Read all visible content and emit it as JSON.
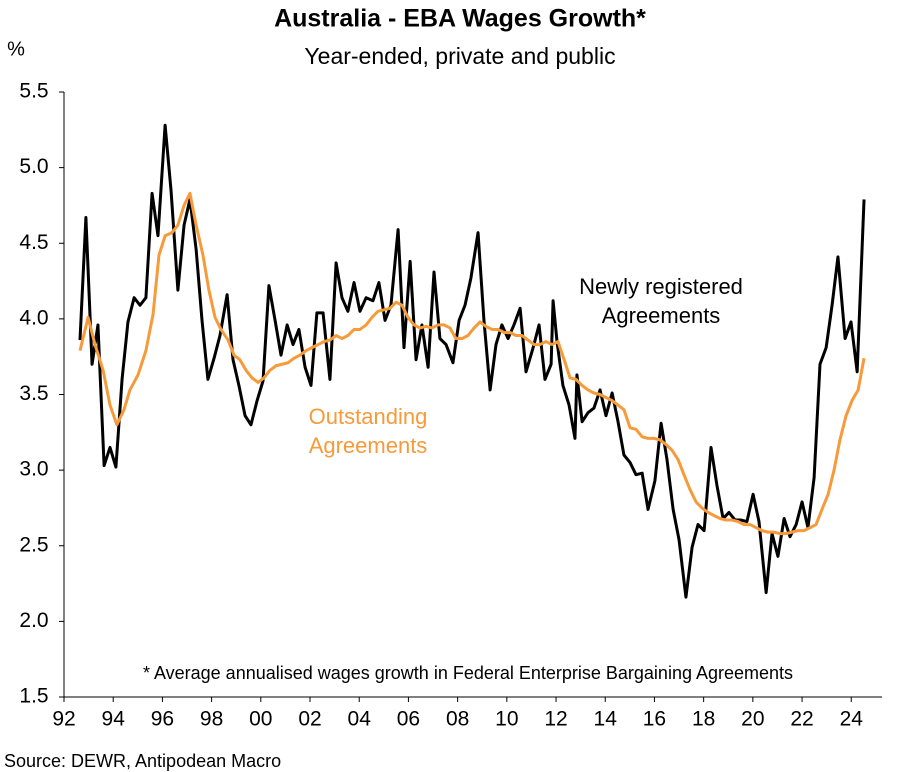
{
  "chart_data": {
    "type": "line",
    "title": "Australia - EBA Wages Growth*",
    "subtitle": "Year-ended, private and public",
    "y_label": "%",
    "footnote": "* Average annualised wages growth in Federal Enterprise Bargaining Agreements",
    "source": "Source: DEWR, Antipodean Macro",
    "xlim": [
      1992,
      2025.25
    ],
    "xticks": [
      {
        "value": 1992,
        "label": "92"
      },
      {
        "value": 1994,
        "label": "94"
      },
      {
        "value": 1996,
        "label": "96"
      },
      {
        "value": 1998,
        "label": "98"
      },
      {
        "value": 2000,
        "label": "00"
      },
      {
        "value": 2002,
        "label": "02"
      },
      {
        "value": 2004,
        "label": "04"
      },
      {
        "value": 2006,
        "label": "06"
      },
      {
        "value": 2008,
        "label": "08"
      },
      {
        "value": 2010,
        "label": "10"
      },
      {
        "value": 2012,
        "label": "12"
      },
      {
        "value": 2014,
        "label": "14"
      },
      {
        "value": 2016,
        "label": "16"
      },
      {
        "value": 2018,
        "label": "18"
      },
      {
        "value": 2020,
        "label": "20"
      },
      {
        "value": 2022,
        "label": "22"
      },
      {
        "value": 2024,
        "label": "24"
      }
    ],
    "ylim": [
      1.5,
      5.5
    ],
    "yticks": [
      1.5,
      {
        "value": 2,
        "label": "2.0"
      },
      2.5,
      {
        "value": 3,
        "label": "3.0"
      },
      3.5,
      {
        "value": 4,
        "label": "4.0"
      },
      4.5,
      {
        "value": 5,
        "label": "5.0"
      },
      5.5
    ],
    "grid": false,
    "series": [
      {
        "name": [
          "Newly registered",
          "Agreements"
        ],
        "color": "#000000",
        "x": [
          1992.65,
          1992.89,
          1993.14,
          1993.38,
          1993.63,
          1993.87,
          1994.11,
          1994.36,
          1994.6,
          1994.85,
          1995.09,
          1995.33,
          1995.58,
          1995.82,
          1996.11,
          1996.35,
          1996.63,
          1996.88,
          1997.12,
          1997.37,
          1997.61,
          1997.85,
          1998.1,
          1998.34,
          1998.63,
          1998.87,
          1999.11,
          1999.36,
          1999.6,
          1999.85,
          2000.09,
          2000.33,
          2000.58,
          2000.82,
          2001.07,
          2001.31,
          2001.55,
          2001.8,
          2002.04,
          2002.28,
          2002.53,
          2002.81,
          2003.06,
          2003.3,
          2003.54,
          2003.79,
          2004.03,
          2004.28,
          2004.56,
          2004.8,
          2005.05,
          2005.29,
          2005.58,
          2005.82,
          2006.07,
          2006.31,
          2006.55,
          2006.8,
          2007.04,
          2007.28,
          2007.53,
          2007.81,
          2008.06,
          2008.3,
          2008.54,
          2008.83,
          2009.07,
          2009.32,
          2009.56,
          2009.8,
          2010.05,
          2010.29,
          2010.54,
          2010.78,
          2011.07,
          2011.31,
          2011.55,
          2011.8,
          2011.88,
          2012.04,
          2012.28,
          2012.53,
          2012.77,
          2012.85,
          2013.06,
          2013.3,
          2013.54,
          2013.79,
          2014.03,
          2014.28,
          2014.52,
          2014.76,
          2015.01,
          2015.25,
          2015.5,
          2015.74,
          2016.02,
          2016.27,
          2016.51,
          2016.76,
          2017.0,
          2017.28,
          2017.53,
          2017.77,
          2018.02,
          2018.3,
          2018.54,
          2018.79,
          2019.03,
          2019.28,
          2019.52,
          2019.76,
          2020.01,
          2020.25,
          2020.54,
          2020.78,
          2021.02,
          2021.27,
          2021.51,
          2021.76,
          2022.0,
          2022.24,
          2022.49,
          2022.73,
          2022.98,
          2023.22,
          2023.46,
          2023.75,
          2023.99,
          2024.24,
          2024.52
        ],
        "values": [
          3.86,
          4.67,
          3.7,
          3.96,
          3.03,
          3.15,
          3.02,
          3.6,
          3.98,
          4.14,
          4.09,
          4.14,
          4.83,
          4.55,
          5.28,
          4.85,
          4.19,
          4.62,
          4.79,
          4.46,
          3.99,
          3.6,
          3.74,
          3.89,
          4.16,
          3.73,
          3.56,
          3.36,
          3.3,
          3.46,
          3.59,
          4.22,
          3.99,
          3.76,
          3.96,
          3.83,
          3.93,
          3.68,
          3.56,
          4.04,
          4.04,
          3.6,
          4.37,
          4.14,
          4.05,
          4.24,
          4.05,
          4.14,
          4.12,
          4.24,
          3.99,
          4.09,
          4.59,
          3.81,
          4.38,
          3.73,
          3.96,
          3.68,
          4.31,
          3.87,
          3.83,
          3.71,
          3.99,
          4.09,
          4.27,
          4.57,
          3.99,
          3.53,
          3.83,
          3.96,
          3.87,
          3.96,
          4.07,
          3.65,
          3.81,
          3.96,
          3.6,
          3.7,
          4.12,
          3.85,
          3.56,
          3.43,
          3.21,
          3.63,
          3.32,
          3.38,
          3.41,
          3.53,
          3.36,
          3.51,
          3.32,
          3.1,
          3.05,
          2.97,
          2.98,
          2.74,
          2.93,
          3.31,
          3.07,
          2.74,
          2.54,
          2.16,
          2.49,
          2.64,
          2.6,
          3.15,
          2.9,
          2.68,
          2.72,
          2.67,
          2.67,
          2.66,
          2.84,
          2.66,
          2.19,
          2.58,
          2.43,
          2.68,
          2.56,
          2.64,
          2.79,
          2.62,
          2.95,
          3.7,
          3.81,
          4.09,
          4.41,
          3.87,
          3.98,
          3.65,
          4.79
        ]
      },
      {
        "name": [
          "Outstanding",
          "Agreements"
        ],
        "color": "#f79a3a",
        "x": [
          1992.65,
          1992.98,
          1993.26,
          1993.59,
          1993.87,
          1994.15,
          1994.44,
          1994.68,
          1995.01,
          1995.33,
          1995.62,
          1995.86,
          1996.11,
          1996.39,
          1996.63,
          1996.88,
          1997.12,
          1997.37,
          1997.65,
          1997.89,
          1998.14,
          1998.38,
          1998.67,
          1998.91,
          1999.15,
          1999.4,
          1999.64,
          1999.89,
          2000.13,
          2000.37,
          2000.62,
          2000.86,
          2001.11,
          2001.35,
          2001.59,
          2001.84,
          2002.08,
          2002.33,
          2002.57,
          2002.81,
          2003.06,
          2003.3,
          2003.54,
          2003.79,
          2004.03,
          2004.28,
          2004.52,
          2004.76,
          2005.01,
          2005.25,
          2005.5,
          2005.74,
          2005.98,
          2006.23,
          2006.47,
          2006.72,
          2006.96,
          2007.2,
          2007.45,
          2007.69,
          2007.93,
          2008.18,
          2008.42,
          2008.67,
          2008.91,
          2009.15,
          2009.4,
          2009.64,
          2009.89,
          2010.13,
          2010.37,
          2010.62,
          2010.86,
          2011.11,
          2011.35,
          2011.59,
          2011.84,
          2012.08,
          2012.33,
          2012.57,
          2012.81,
          2013.06,
          2013.3,
          2013.54,
          2013.79,
          2014.03,
          2014.28,
          2014.52,
          2014.76,
          2015.01,
          2015.25,
          2015.5,
          2015.74,
          2015.98,
          2016.23,
          2016.47,
          2016.72,
          2016.96,
          2017.2,
          2017.45,
          2017.69,
          2017.93,
          2018.18,
          2018.42,
          2018.67,
          2018.91,
          2019.15,
          2019.4,
          2019.64,
          2019.89,
          2020.13,
          2020.37,
          2020.62,
          2020.86,
          2021.11,
          2021.35,
          2021.59,
          2021.84,
          2022.08,
          2022.33,
          2022.57,
          2022.81,
          2023.06,
          2023.3,
          2023.54,
          2023.79,
          2024.03,
          2024.28,
          2024.52
        ],
        "values": [
          3.79,
          4.01,
          3.83,
          3.66,
          3.43,
          3.3,
          3.4,
          3.53,
          3.63,
          3.79,
          4.03,
          4.42,
          4.55,
          4.57,
          4.62,
          4.75,
          4.83,
          4.62,
          4.42,
          4.19,
          4.01,
          3.93,
          3.86,
          3.76,
          3.73,
          3.66,
          3.61,
          3.58,
          3.61,
          3.66,
          3.69,
          3.7,
          3.71,
          3.74,
          3.76,
          3.79,
          3.81,
          3.83,
          3.85,
          3.86,
          3.89,
          3.87,
          3.89,
          3.93,
          3.93,
          3.96,
          4.01,
          4.05,
          4.06,
          4.07,
          4.11,
          4.09,
          4.01,
          3.96,
          3.94,
          3.95,
          3.94,
          3.96,
          3.96,
          3.94,
          3.87,
          3.87,
          3.89,
          3.94,
          3.98,
          3.95,
          3.93,
          3.93,
          3.91,
          3.91,
          3.89,
          3.89,
          3.86,
          3.83,
          3.83,
          3.85,
          3.83,
          3.85,
          3.73,
          3.61,
          3.6,
          3.56,
          3.53,
          3.51,
          3.5,
          3.48,
          3.46,
          3.43,
          3.4,
          3.28,
          3.27,
          3.22,
          3.21,
          3.21,
          3.2,
          3.17,
          3.13,
          3.07,
          2.97,
          2.87,
          2.79,
          2.75,
          2.72,
          2.7,
          2.68,
          2.67,
          2.67,
          2.66,
          2.64,
          2.64,
          2.62,
          2.6,
          2.59,
          2.59,
          2.58,
          2.58,
          2.59,
          2.6,
          2.6,
          2.62,
          2.64,
          2.74,
          2.84,
          3.0,
          3.2,
          3.36,
          3.46,
          3.53,
          3.74
        ]
      }
    ]
  }
}
